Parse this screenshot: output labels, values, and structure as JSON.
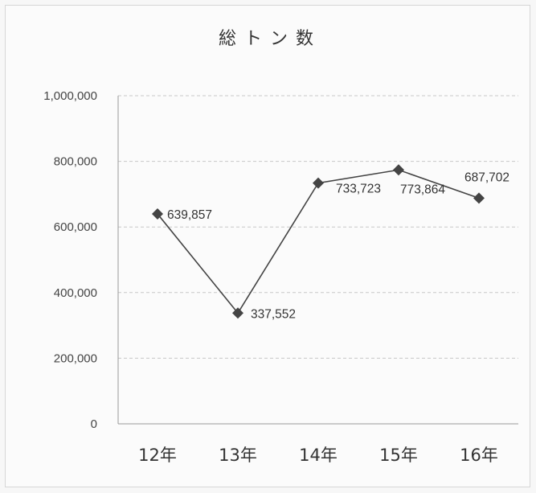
{
  "chart_data": {
    "type": "line",
    "title": "総トン数",
    "categories": [
      "12年",
      "13年",
      "14年",
      "15年",
      "16年"
    ],
    "series": [
      {
        "values": [
          639857,
          337552,
          733723,
          773864,
          687702
        ],
        "data_labels": [
          "639,857",
          "337,552",
          "733,723",
          "773,864",
          "687,702"
        ],
        "marker": "diamond",
        "color": "#444444"
      }
    ],
    "y_ticks": [
      0,
      200000,
      400000,
      600000,
      800000,
      1000000
    ],
    "y_tick_labels": [
      "0",
      "200,000",
      "400,000",
      "600,000",
      "800,000",
      "1,000,000"
    ],
    "ylim": [
      0,
      1000000
    ],
    "xlabel": "",
    "ylabel": "",
    "grid": "horizontal dashed",
    "legend": "none"
  },
  "colors": {
    "background": "#fbfbfb",
    "line": "#444444",
    "grid": "#c8c8c8",
    "axis": "#9a9a9a"
  }
}
